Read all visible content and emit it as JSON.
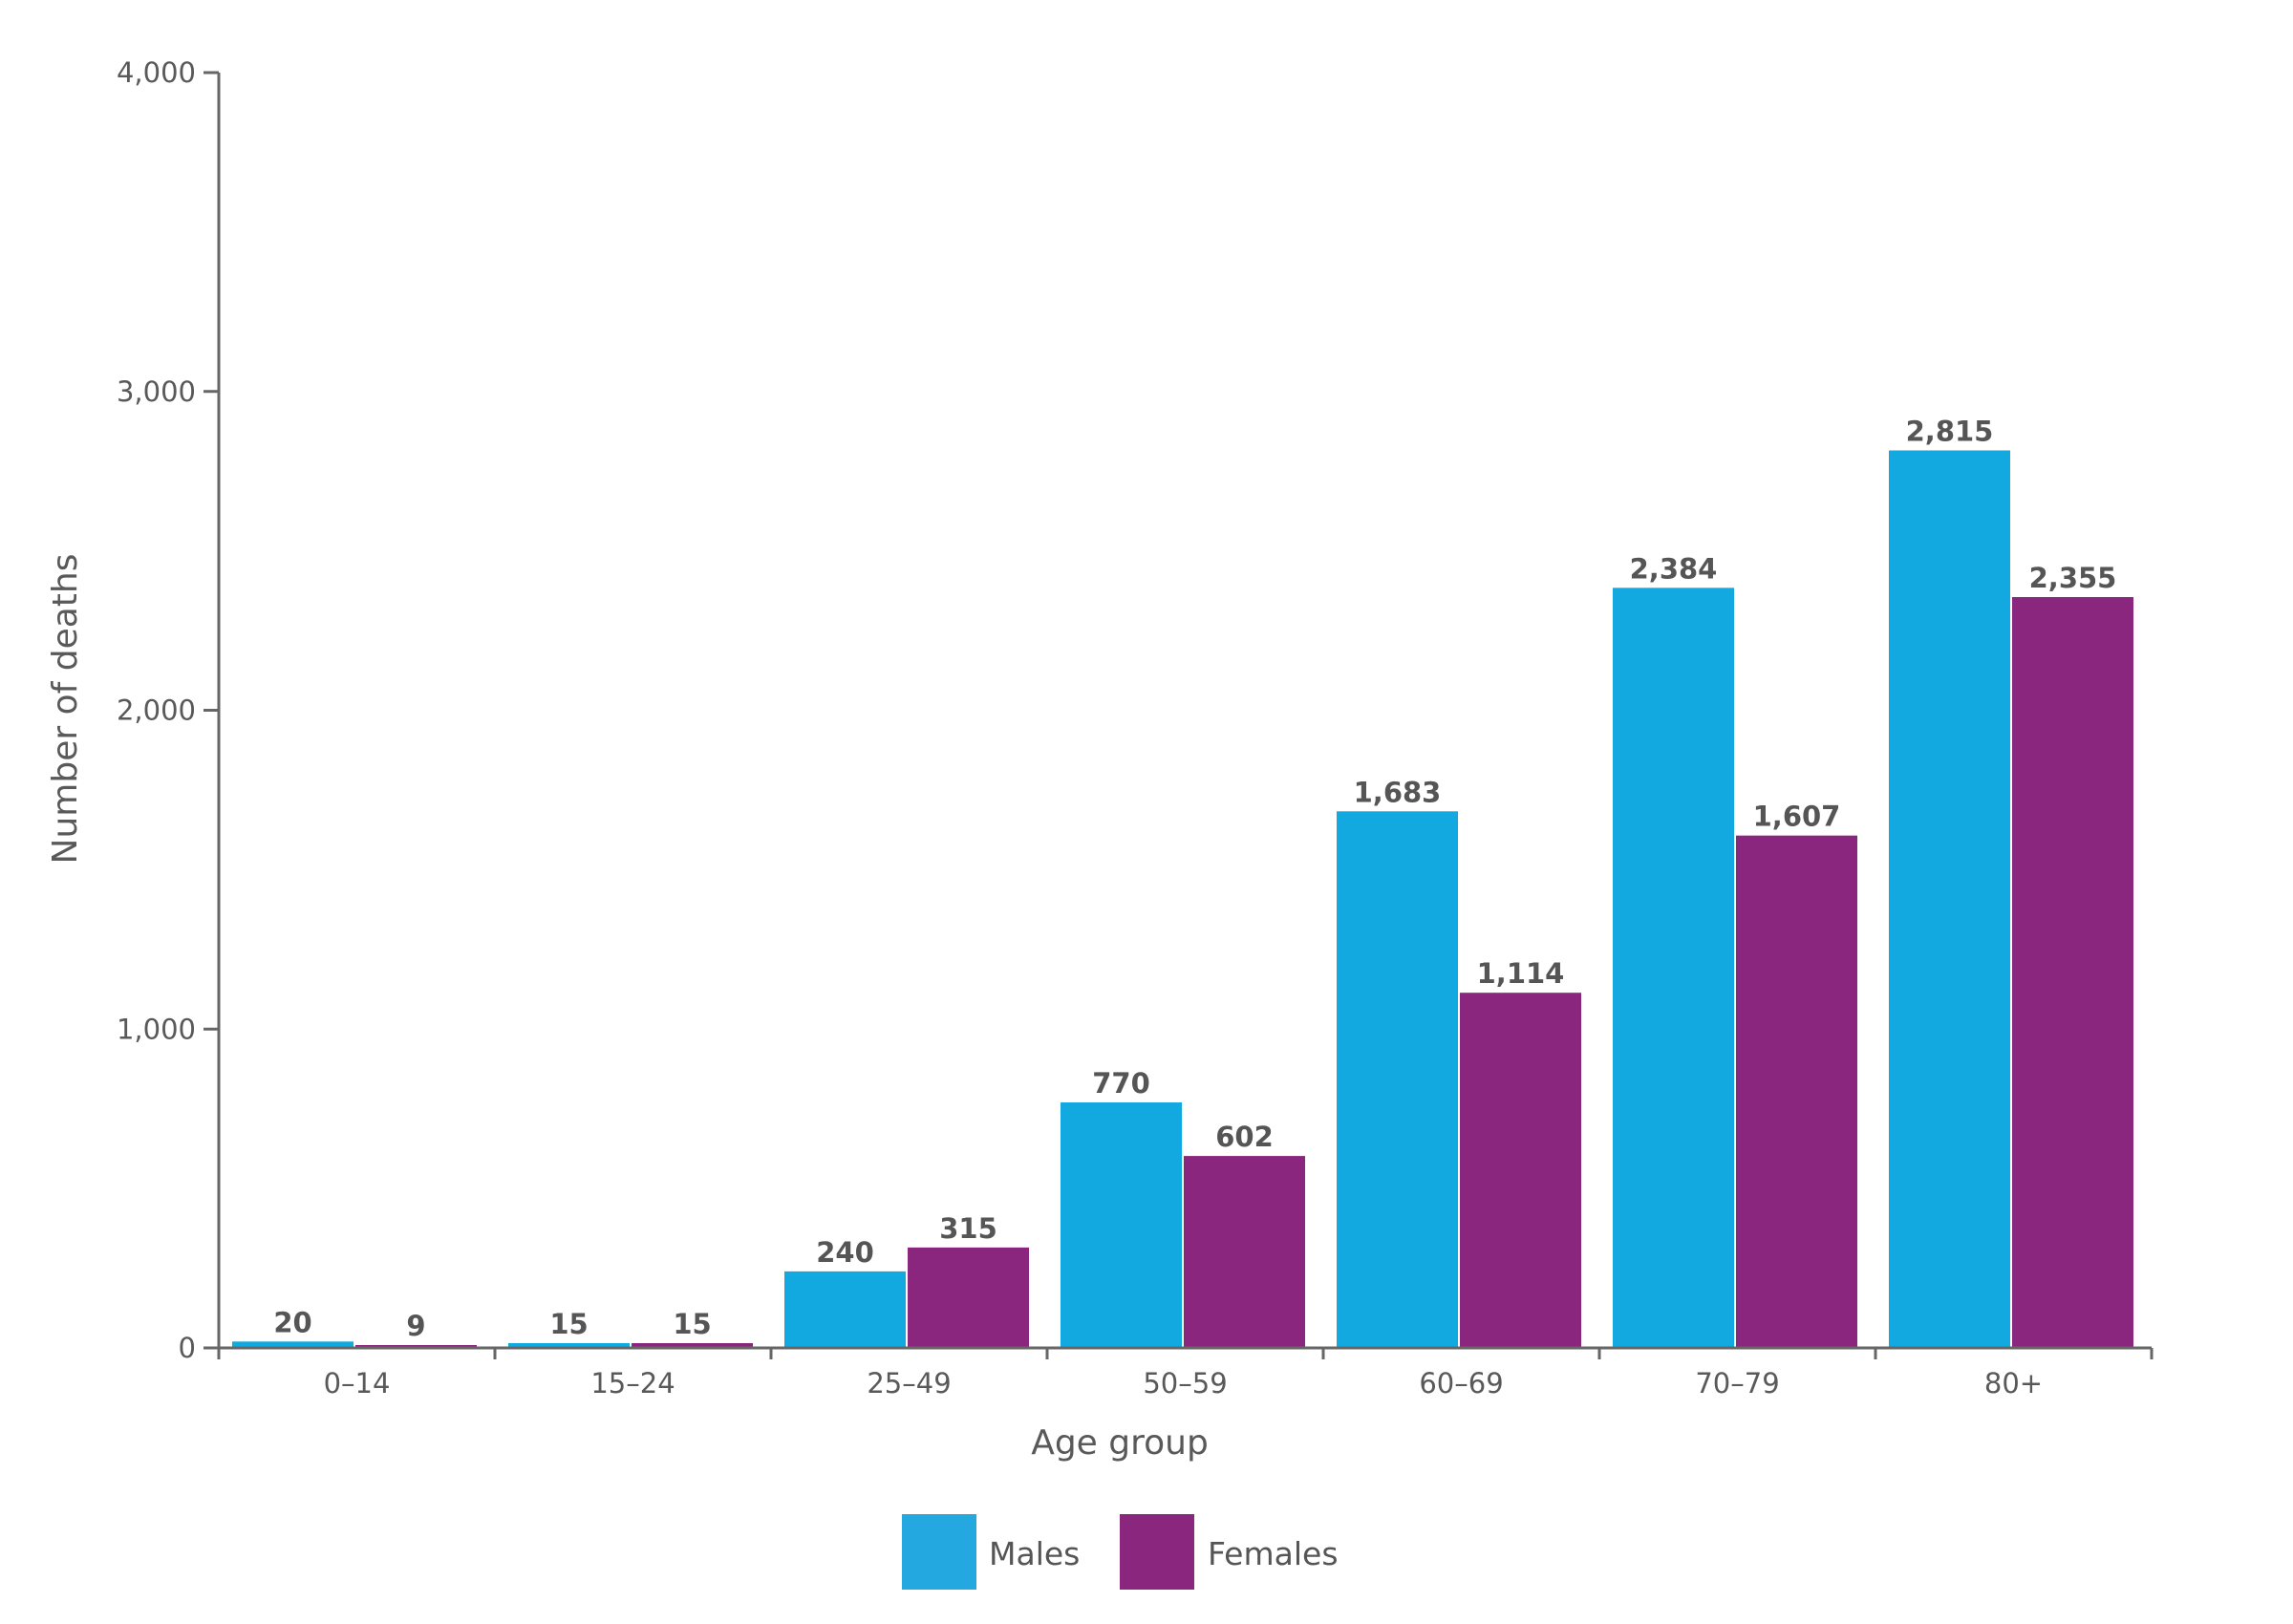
{
  "chart_data": {
    "type": "bar",
    "title": "",
    "xlabel": "Age group",
    "ylabel": "Number of deaths",
    "categories": [
      "0–14",
      "15–24",
      "25–49",
      "50–59",
      "60–69",
      "70–79",
      "80+"
    ],
    "series": [
      {
        "name": "Males",
        "color": "#12A9E0",
        "values": [
          20,
          15,
          240,
          770,
          1683,
          2384,
          2815
        ],
        "labels": [
          "20",
          "15",
          "240",
          "770",
          "1,683",
          "2,384",
          "2,815"
        ]
      },
      {
        "name": "Females",
        "color": "#8A267E",
        "values": [
          9,
          15,
          315,
          602,
          1114,
          1607,
          2355
        ],
        "labels": [
          "9",
          "15",
          "315",
          "602",
          "1,114",
          "1,607",
          "2,355"
        ]
      }
    ],
    "ylim": [
      0,
      4000
    ],
    "yticks": [
      0,
      1000,
      2000,
      3000,
      4000
    ],
    "ytick_labels": [
      "0",
      "1,000",
      "2,000",
      "3,000",
      "4,000"
    ],
    "grid": false,
    "legend": "bottom"
  }
}
